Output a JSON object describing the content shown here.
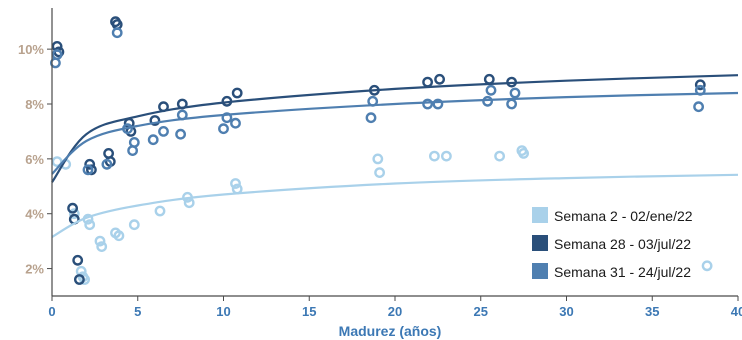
{
  "chart_data": {
    "type": "scatter",
    "title": "",
    "xlabel": "Madurez (años)",
    "ylabel": "",
    "xlim": [
      0,
      40
    ],
    "ylim": [
      1,
      11.5
    ],
    "x_ticks": [
      0,
      5,
      10,
      15,
      20,
      25,
      30,
      35,
      40
    ],
    "y_ticks": [
      2,
      4,
      6,
      8,
      10
    ],
    "y_tick_labels": [
      "2%",
      "4%",
      "6%",
      "8%",
      "10%"
    ],
    "grid": false,
    "legend_position": "bottom-right",
    "series": [
      {
        "name": "Semana 2 - 02/ene/22",
        "color": "#a9d1ea",
        "points": [
          [
            0.3,
            5.9
          ],
          [
            0.8,
            5.8
          ],
          [
            1.3,
            4.0
          ],
          [
            1.7,
            1.9
          ],
          [
            1.8,
            1.7
          ],
          [
            1.9,
            1.6
          ],
          [
            2.1,
            3.8
          ],
          [
            2.2,
            3.6
          ],
          [
            2.8,
            3.0
          ],
          [
            2.9,
            2.8
          ],
          [
            3.7,
            3.3
          ],
          [
            3.9,
            3.2
          ],
          [
            4.8,
            3.6
          ],
          [
            6.3,
            4.1
          ],
          [
            7.9,
            4.6
          ],
          [
            8.0,
            4.4
          ],
          [
            10.7,
            5.1
          ],
          [
            10.8,
            4.9
          ],
          [
            19.0,
            6.0
          ],
          [
            19.1,
            5.5
          ],
          [
            22.3,
            6.1
          ],
          [
            23.0,
            6.1
          ],
          [
            26.1,
            6.1
          ],
          [
            27.4,
            6.3
          ],
          [
            27.5,
            6.2
          ],
          [
            38.2,
            2.1
          ]
        ],
        "trend": [
          [
            0,
            3.15
          ],
          [
            2,
            3.85
          ],
          [
            5,
            4.3
          ],
          [
            10,
            4.7
          ],
          [
            20,
            5.1
          ],
          [
            30,
            5.3
          ],
          [
            40,
            5.42
          ]
        ]
      },
      {
        "name": "Semana 28 - 03/jul/22",
        "color": "#2a4f7a",
        "points": [
          [
            0.3,
            10.1
          ],
          [
            0.4,
            9.9
          ],
          [
            1.2,
            4.2
          ],
          [
            1.3,
            3.8
          ],
          [
            1.5,
            2.3
          ],
          [
            1.6,
            1.6
          ],
          [
            2.2,
            5.8
          ],
          [
            2.3,
            5.6
          ],
          [
            3.3,
            6.2
          ],
          [
            3.4,
            5.9
          ],
          [
            3.7,
            11.0
          ],
          [
            3.8,
            10.9
          ],
          [
            4.5,
            7.3
          ],
          [
            4.6,
            7.0
          ],
          [
            6.0,
            7.4
          ],
          [
            6.5,
            7.9
          ],
          [
            7.6,
            8.0
          ],
          [
            10.2,
            8.1
          ],
          [
            10.8,
            8.4
          ],
          [
            18.8,
            8.5
          ],
          [
            21.9,
            8.8
          ],
          [
            22.6,
            8.9
          ],
          [
            25.5,
            8.9
          ],
          [
            26.8,
            8.8
          ],
          [
            37.8,
            8.7
          ]
        ],
        "trend": [
          [
            0,
            5.15
          ],
          [
            2,
            6.9
          ],
          [
            5,
            7.55
          ],
          [
            10,
            8.05
          ],
          [
            20,
            8.55
          ],
          [
            30,
            8.85
          ],
          [
            40,
            9.05
          ]
        ]
      },
      {
        "name": "Semana 31 - 24/jul/22",
        "color": "#4f7fb0",
        "points": [
          [
            0.2,
            9.5
          ],
          [
            0.3,
            9.8
          ],
          [
            2.1,
            5.6
          ],
          [
            3.2,
            5.8
          ],
          [
            3.8,
            10.6
          ],
          [
            4.4,
            7.1
          ],
          [
            4.7,
            6.3
          ],
          [
            4.8,
            6.6
          ],
          [
            5.9,
            6.7
          ],
          [
            6.5,
            7.0
          ],
          [
            7.5,
            6.9
          ],
          [
            7.6,
            7.6
          ],
          [
            10.0,
            7.1
          ],
          [
            10.2,
            7.5
          ],
          [
            10.7,
            7.3
          ],
          [
            18.6,
            7.5
          ],
          [
            18.7,
            8.1
          ],
          [
            21.9,
            8.0
          ],
          [
            22.5,
            8.0
          ],
          [
            25.4,
            8.1
          ],
          [
            25.6,
            8.5
          ],
          [
            26.8,
            8.0
          ],
          [
            27.0,
            8.4
          ],
          [
            37.7,
            7.9
          ],
          [
            37.8,
            8.5
          ]
        ],
        "trend": [
          [
            0,
            5.45
          ],
          [
            2,
            6.65
          ],
          [
            5,
            7.2
          ],
          [
            10,
            7.6
          ],
          [
            20,
            8.0
          ],
          [
            30,
            8.25
          ],
          [
            40,
            8.4
          ]
        ]
      }
    ]
  }
}
